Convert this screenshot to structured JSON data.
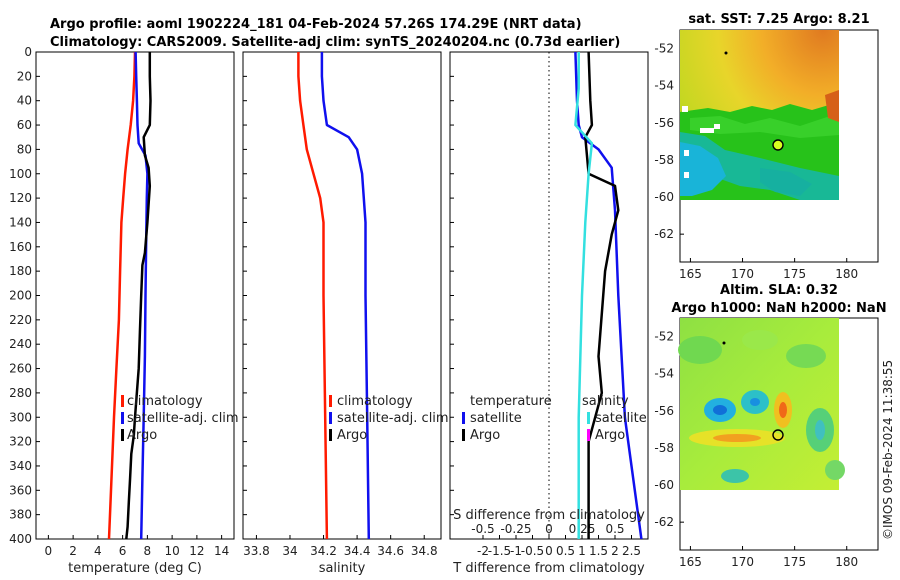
{
  "title": {
    "line1": "Argo profile: aoml 1902224_181 04-Feb-2024 57.26S 174.29E (NRT data)",
    "line2": "Climatology: CARS2009. Satellite-adj clim: synTS_20240204.nc (0.73d earlier)"
  },
  "footer": "©IMOS 09-Feb-2024 11:38:55",
  "colors": {
    "climatology": "#ff1a00",
    "satellite": "#1010ee",
    "argo": "#000000",
    "salinity_diff": "#33e0e0",
    "marker": "#ff00ff"
  },
  "chart_data": [
    {
      "type": "line",
      "name": "temperature-panel",
      "xlabel": "temperature (deg C)",
      "xlim": [
        -1,
        15
      ],
      "xticks": [
        0,
        2,
        4,
        6,
        8,
        10,
        12,
        14
      ],
      "ylim": [
        0,
        400
      ],
      "yticks": [
        0,
        20,
        40,
        60,
        80,
        100,
        120,
        140,
        160,
        180,
        200,
        220,
        240,
        260,
        280,
        300,
        320,
        340,
        360,
        380,
        400
      ],
      "legend": [
        "climatology",
        "satellite-adj. clim",
        "Argo"
      ],
      "legend_position": "lower-right",
      "series": [
        {
          "name": "climatology",
          "color": "#ff1a00",
          "x": [
            7.0,
            6.95,
            6.85,
            6.65,
            6.4,
            6.2,
            6.05,
            5.9,
            5.8,
            5.7,
            5.5,
            5.3,
            5.1,
            4.9
          ],
          "y": [
            0,
            20,
            40,
            60,
            80,
            100,
            120,
            140,
            180,
            220,
            260,
            300,
            350,
            400
          ]
        },
        {
          "name": "satellite-adj. clim",
          "color": "#1010ee",
          "x": [
            7.05,
            7.1,
            7.15,
            7.2,
            7.3,
            7.85,
            8.0,
            7.95,
            7.9,
            7.85,
            7.8,
            7.7,
            7.6,
            7.5
          ],
          "y": [
            0,
            20,
            40,
            60,
            75,
            85,
            100,
            120,
            160,
            200,
            250,
            300,
            350,
            400
          ]
        },
        {
          "name": "Argo",
          "color": "#000000",
          "x": [
            8.2,
            8.2,
            8.25,
            8.2,
            7.7,
            7.8,
            8.1,
            8.2,
            8.0,
            7.8,
            7.6,
            7.5,
            7.4,
            7.3,
            7.0,
            6.9,
            6.7,
            6.6,
            6.5,
            6.4,
            6.3
          ],
          "y": [
            0,
            20,
            40,
            60,
            70,
            85,
            95,
            110,
            140,
            165,
            175,
            200,
            230,
            260,
            300,
            315,
            330,
            350,
            370,
            390,
            400
          ]
        }
      ]
    },
    {
      "type": "line",
      "name": "salinity-panel",
      "xlabel": "salinity",
      "xlim": [
        33.72,
        34.9
      ],
      "xticks": [
        33.8,
        34,
        34.2,
        34.4,
        34.6,
        34.8
      ],
      "xtick_labels": [
        "33.8",
        "34",
        "34.2",
        "34.4",
        "34.6",
        "34.8"
      ],
      "ylim": [
        0,
        400
      ],
      "legend": [
        "climatology",
        "satellite-adj. clim",
        "Argo"
      ],
      "legend_position": "lower-right",
      "series": [
        {
          "name": "climatology",
          "color": "#ff1a00",
          "x": [
            34.05,
            34.05,
            34.06,
            34.08,
            34.1,
            34.14,
            34.18,
            34.2,
            34.2,
            34.21,
            34.22
          ],
          "y": [
            0,
            20,
            40,
            60,
            80,
            100,
            120,
            140,
            200,
            300,
            400
          ]
        },
        {
          "name": "satellite-adj. clim",
          "color": "#1010ee",
          "x": [
            34.19,
            34.19,
            34.2,
            34.22,
            34.35,
            34.4,
            34.43,
            34.45,
            34.45,
            34.46,
            34.47
          ],
          "y": [
            0,
            20,
            40,
            60,
            70,
            80,
            100,
            140,
            200,
            300,
            400
          ]
        }
      ]
    },
    {
      "type": "line",
      "name": "difference-panel",
      "xlabel": "T difference from climatology",
      "secondary_xlabel": "S difference from climatology",
      "xlim": [
        -3,
        3
      ],
      "xticks": [
        -2,
        -1.5,
        -1,
        -0.5,
        0,
        0.5,
        1,
        1.5,
        2,
        2.5
      ],
      "xtick_labels": [
        "-2",
        "-1.5",
        "-1",
        "-0.5",
        "0",
        "0.5",
        "1",
        "1.5",
        "2",
        "2.5"
      ],
      "secondary_xticks": [
        -0.5,
        -0.25,
        0,
        0.25,
        0.5
      ],
      "secondary_xtick_labels": [
        "-0.5",
        "-0.25",
        "0",
        "0.25",
        "0.5"
      ],
      "ylim": [
        0,
        400
      ],
      "legend_left": [
        "temperature",
        "satellite",
        "Argo"
      ],
      "legend_right": [
        "salinity",
        "satellite",
        "Argo"
      ],
      "series": [
        {
          "name": "T satellite",
          "color": "#1010ee",
          "x": [
            0.8,
            0.85,
            0.9,
            1.0,
            1.5,
            1.9,
            2.0,
            2.1,
            2.3,
            2.6,
            2.8
          ],
          "y": [
            0,
            40,
            60,
            70,
            80,
            95,
            130,
            200,
            300,
            360,
            400
          ]
        },
        {
          "name": "T Argo",
          "color": "#000000",
          "x": [
            1.2,
            1.25,
            1.3,
            1.1,
            1.2,
            2.0,
            2.1,
            1.9,
            1.7,
            1.5,
            1.6,
            1.2,
            1.2
          ],
          "y": [
            0,
            40,
            60,
            70,
            100,
            110,
            130,
            150,
            180,
            250,
            280,
            320,
            400
          ]
        },
        {
          "name": "S satellite",
          "color": "#33e0e0",
          "x": [
            0.9,
            0.9,
            0.8,
            1.3,
            1.2,
            1.1,
            1.0,
            0.9,
            0.9
          ],
          "y": [
            0,
            30,
            60,
            75,
            100,
            140,
            200,
            300,
            400
          ]
        }
      ]
    },
    {
      "type": "heatmap",
      "name": "sst-map",
      "title": "sat. SST: 7.25 Argo: 8.21",
      "xlim": [
        164,
        183
      ],
      "ylim": [
        -63.5,
        -51
      ],
      "xticks": [
        165,
        170,
        175,
        180
      ],
      "yticks": [
        -52,
        -54,
        -56,
        -58,
        -60,
        -62
      ],
      "argo_position": [
        174.29,
        -57.26
      ]
    },
    {
      "type": "heatmap",
      "name": "sla-map",
      "title_line1": "Altim. SLA: 0.32",
      "title_line2": "Argo h1000: NaN h2000: NaN",
      "xlim": [
        164,
        183
      ],
      "ylim": [
        -63.5,
        -51
      ],
      "xticks": [
        165,
        170,
        175,
        180
      ],
      "yticks": [
        -52,
        -54,
        -56,
        -58,
        -60,
        -62
      ],
      "argo_position": [
        174.29,
        -57.26
      ]
    }
  ]
}
